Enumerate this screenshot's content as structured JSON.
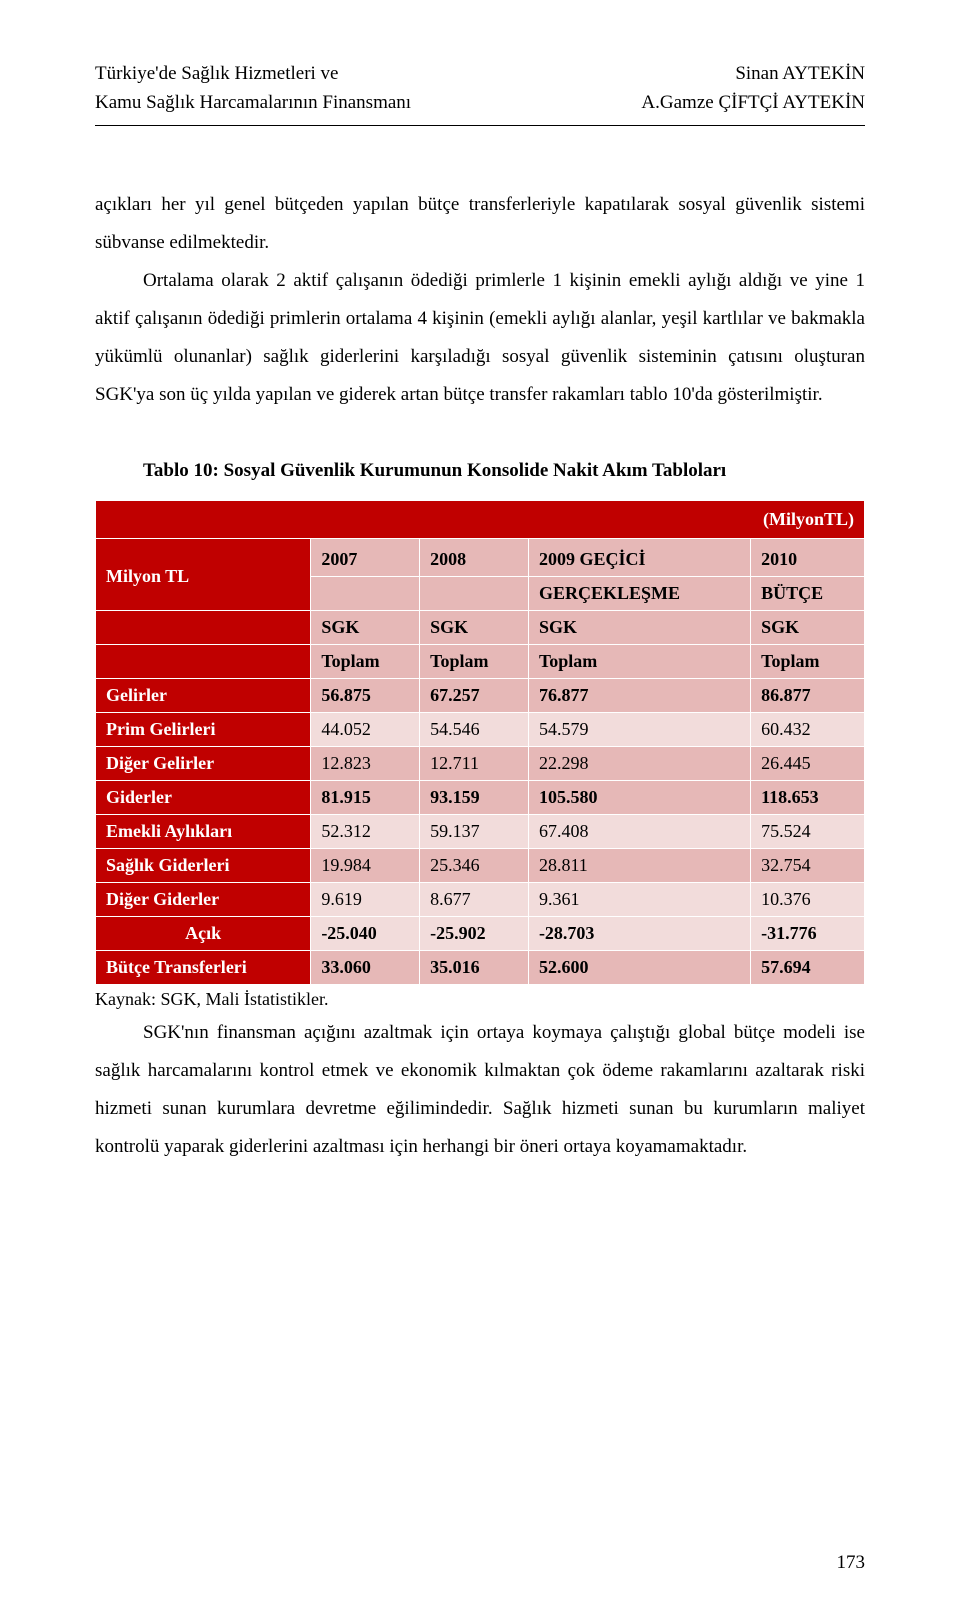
{
  "header": {
    "left_line1": "Türkiye'de Sağlık Hizmetleri ve",
    "left_line2": "Kamu Sağlık Harcamalarının Finansmanı",
    "right_line1": "Sinan AYTEKİN",
    "right_line2": "A.Gamze ÇİFTÇİ AYTEKİN"
  },
  "body": {
    "para1": "açıkları her yıl genel bütçeden yapılan bütçe transferleriyle kapatılarak sosyal güvenlik sistemi sübvanse edilmektedir.",
    "para2": "Ortalama olarak 2 aktif çalışanın ödediği primlerle 1 kişinin emekli aylığı aldığı ve yine 1 aktif çalışanın ödediği primlerin ortalama 4 kişinin (emekli aylığı alanlar, yeşil kartlılar ve bakmakla yükümlü olunanlar) sağlık giderlerini karşıladığı sosyal güvenlik sisteminin çatısını oluşturan SGK'ya son üç yılda yapılan ve giderek artan bütçe transfer rakamları tablo 10'da gösterilmiştir.",
    "para3": "SGK'nın finansman açığını azaltmak için ortaya koymaya çalıştığı global bütçe modeli ise sağlık harcamalarını kontrol etmek ve ekonomik kılmaktan çok ödeme rakamlarını azaltarak riski hizmeti sunan kurumlara devretme eğilimindedir. Sağlık hizmeti sunan bu kurumların maliyet kontrolü yaparak giderlerini azaltması için herhangi bir öneri ortaya koyamamaktadır."
  },
  "table": {
    "title": "Tablo 10: Sosyal Güvenlik Kurumunun Konsolide Nakit Akım Tabloları",
    "unit": "(MilyonTL)",
    "row_label_header": "Milyon TL",
    "col_years": {
      "c1": "2007",
      "c2": "2008",
      "c3": "2009 GEÇİCİ",
      "c4": "2010"
    },
    "col_sub": {
      "c3": "GERÇEKLEŞME",
      "c4": "BÜTÇE"
    },
    "col_sgk": {
      "c1": "SGK",
      "c2": "SGK",
      "c3": "SGK",
      "c4": "SGK"
    },
    "col_toplam": {
      "c1": "Toplam",
      "c2": "Toplam",
      "c3": "Toplam",
      "c4": "Toplam"
    },
    "rows": {
      "r0": {
        "label": "Gelirler",
        "c1": "56.875",
        "c2": "67.257",
        "c3": "76.877",
        "c4": "86.877"
      },
      "r1": {
        "label": "Prim Gelirleri",
        "c1": "44.052",
        "c2": "54.546",
        "c3": "54.579",
        "c4": "60.432"
      },
      "r2": {
        "label": "Diğer Gelirler",
        "c1": "12.823",
        "c2": "12.711",
        "c3": "22.298",
        "c4": "26.445"
      },
      "r3": {
        "label": "Giderler",
        "c1": "81.915",
        "c2": "93.159",
        "c3": "105.580",
        "c4": "118.653"
      },
      "r4": {
        "label": "Emekli Aylıkları",
        "c1": "52.312",
        "c2": "59.137",
        "c3": "67.408",
        "c4": "75.524"
      },
      "r5": {
        "label": "Sağlık Giderleri",
        "c1": "19.984",
        "c2": "25.346",
        "c3": "28.811",
        "c4": "32.754"
      },
      "r6": {
        "label": "Diğer Giderler",
        "c1": "9.619",
        "c2": "8.677",
        "c3": "9.361",
        "c4": "10.376"
      },
      "r7": {
        "label": "Açık",
        "c1": "-25.040",
        "c2": "-25.902",
        "c3": "-28.703",
        "c4": "-31.776"
      },
      "r8": {
        "label": "Bütçe Transferleri",
        "c1": "33.060",
        "c2": "35.016",
        "c3": "52.600",
        "c4": "57.694"
      }
    },
    "source": "Kaynak: SGK, Mali İstatistikler."
  },
  "colors": {
    "dark": "#c00000",
    "mid": "#e6b8b7",
    "light": "#f2dcdb",
    "white": "#ffffff",
    "text_on_dark": "#ffffff",
    "text_on_light": "#000000"
  },
  "page_number": "173"
}
